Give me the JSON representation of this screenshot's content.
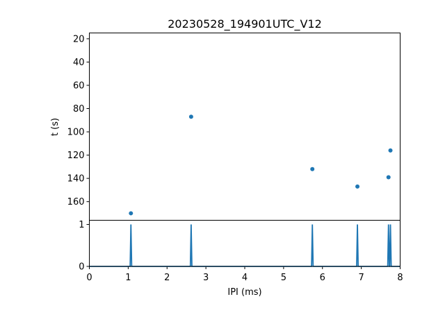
{
  "chart_data": [
    {
      "type": "scatter",
      "title": "20230528_194901UTC_V12",
      "ylabel": "t (s)",
      "xlabel": "",
      "xlim": [
        0,
        8
      ],
      "ylim": [
        176,
        15
      ],
      "y_inverted": true,
      "yticks": [
        20,
        40,
        60,
        80,
        100,
        120,
        140,
        160
      ],
      "color": "#1f77b4",
      "x": [
        1.07,
        2.62,
        5.74,
        6.9,
        7.7,
        7.75
      ],
      "y": [
        170,
        87,
        132,
        147,
        139,
        116
      ]
    },
    {
      "type": "line",
      "title": "",
      "xlabel": "IPI (ms)",
      "ylabel": "",
      "xlim": [
        0,
        8
      ],
      "ylim": [
        0,
        1.1
      ],
      "xticks": [
        0,
        1,
        2,
        3,
        4,
        5,
        6,
        7,
        8
      ],
      "yticks": [
        0,
        1
      ],
      "color": "#1f77b4",
      "spikes": [
        1.07,
        2.62,
        5.74,
        6.9,
        7.7,
        7.75
      ],
      "spike_height": 1
    }
  ]
}
